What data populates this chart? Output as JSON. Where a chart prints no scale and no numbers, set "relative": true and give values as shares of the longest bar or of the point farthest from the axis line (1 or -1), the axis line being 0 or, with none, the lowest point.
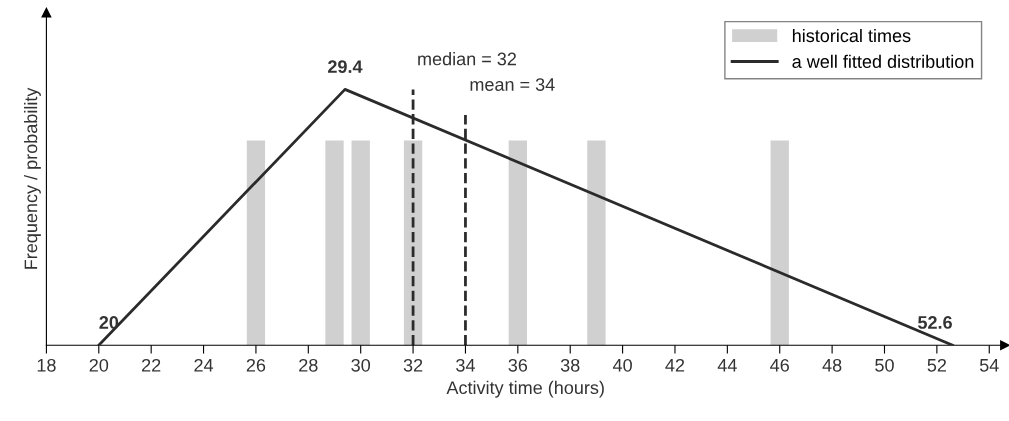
{
  "chart_data": {
    "type": "line",
    "xlabel": "Activity time (hours)",
    "ylabel": "Frequency / probability",
    "relative": true,
    "xlim": [
      18,
      54.6
    ],
    "xticks": [
      18,
      20,
      22,
      24,
      26,
      28,
      30,
      32,
      34,
      36,
      38,
      40,
      42,
      44,
      46,
      48,
      50,
      52,
      54
    ],
    "series": [
      {
        "name": "historical times",
        "type": "bar",
        "color": "#d0d0d0",
        "x": [
          26,
          29,
          30,
          32,
          36,
          39,
          46
        ],
        "values": [
          0.8,
          0.8,
          0.8,
          0.8,
          0.8,
          0.8,
          0.8
        ]
      },
      {
        "name": "a well fitted distribution",
        "color": "#2b2b2b",
        "x": [
          20,
          29.4,
          52.6
        ],
        "values": [
          0,
          1,
          0
        ]
      }
    ],
    "ref_lines": [
      {
        "axis": "x",
        "value": 32,
        "label": "median = 32",
        "line_style": "dashed",
        "color": "#2b2b2b"
      },
      {
        "axis": "x",
        "value": 34,
        "label": "mean = 34",
        "line_style": "dashed",
        "color": "#2b2b2b"
      }
    ],
    "annotations": [
      {
        "text": "20",
        "x": 20,
        "y": 0
      },
      {
        "text": "29.4",
        "x": 29.4,
        "y": 1
      },
      {
        "text": "52.6",
        "x": 52.6,
        "y": 0
      }
    ],
    "legend": "top right",
    "grid": false,
    "tick_labels": "x"
  }
}
